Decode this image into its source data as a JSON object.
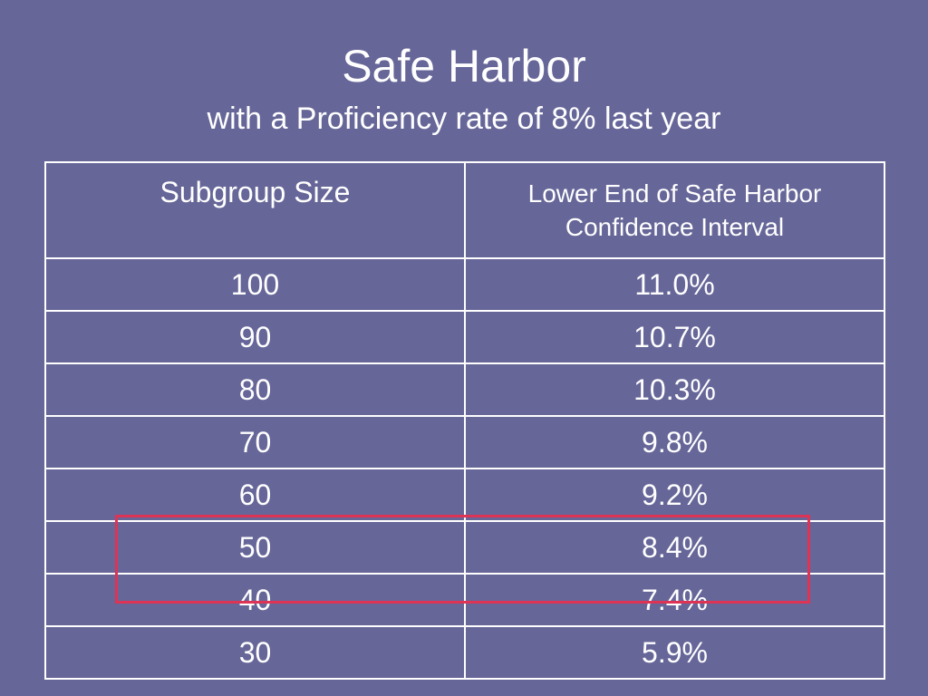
{
  "slide": {
    "title": "Safe Harbor",
    "subtitle": "with a Proficiency rate of 8% last year"
  },
  "table": {
    "headers": [
      "Subgroup Size",
      "Lower End of Safe Harbor Confidence Interval"
    ],
    "rows": [
      [
        "100",
        "11.0%"
      ],
      [
        "90",
        "10.7%"
      ],
      [
        "80",
        "10.3%"
      ],
      [
        "70",
        "9.8%"
      ],
      [
        "60",
        "9.2%"
      ],
      [
        "50",
        "8.4%"
      ],
      [
        "40",
        "7.4%"
      ],
      [
        "30",
        "5.9%"
      ]
    ],
    "highlighted_rows": [
      "50",
      "40"
    ]
  },
  "colors": {
    "background": "#666699",
    "text": "#ffffff",
    "grid": "#ffffff",
    "highlight": "#dd3355"
  }
}
